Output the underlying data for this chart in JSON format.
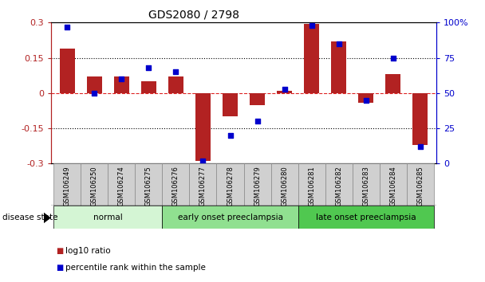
{
  "title": "GDS2080 / 2798",
  "samples": [
    "GSM106249",
    "GSM106250",
    "GSM106274",
    "GSM106275",
    "GSM106276",
    "GSM106277",
    "GSM106278",
    "GSM106279",
    "GSM106280",
    "GSM106281",
    "GSM106282",
    "GSM106283",
    "GSM106284",
    "GSM106285"
  ],
  "log10_ratio": [
    0.19,
    0.07,
    0.07,
    0.05,
    0.07,
    -0.29,
    -0.1,
    -0.05,
    0.01,
    0.295,
    0.22,
    -0.04,
    0.08,
    -0.22
  ],
  "percentile_rank": [
    97,
    50,
    60,
    68,
    65,
    2,
    20,
    30,
    53,
    98,
    85,
    45,
    75,
    12
  ],
  "bar_color": "#b22222",
  "dot_color": "#0000cc",
  "ylim_left": [
    -0.3,
    0.3
  ],
  "ylim_right": [
    0,
    100
  ],
  "yticks_left": [
    -0.3,
    -0.15,
    0.0,
    0.15,
    0.3
  ],
  "ytick_labels_left": [
    "-0.3",
    "-0.15",
    "0",
    "0.15",
    "0.3"
  ],
  "yticks_right": [
    0,
    25,
    50,
    75,
    100
  ],
  "ytick_labels_right": [
    "0",
    "25",
    "50",
    "75",
    "100%"
  ],
  "groups": [
    {
      "label": "normal",
      "start": 0,
      "end": 3,
      "color": "#d4f5d4"
    },
    {
      "label": "early onset preeclampsia",
      "start": 4,
      "end": 8,
      "color": "#90e090"
    },
    {
      "label": "late onset preeclampsia",
      "start": 9,
      "end": 13,
      "color": "#50c850"
    }
  ],
  "disease_state_label": "disease state",
  "legend_bar_label": "log10 ratio",
  "legend_dot_label": "percentile rank within the sample",
  "hline_color": "#dd2222",
  "background_color": "#ffffff",
  "box_color": "#d0d0d0",
  "box_edge_color": "#888888"
}
